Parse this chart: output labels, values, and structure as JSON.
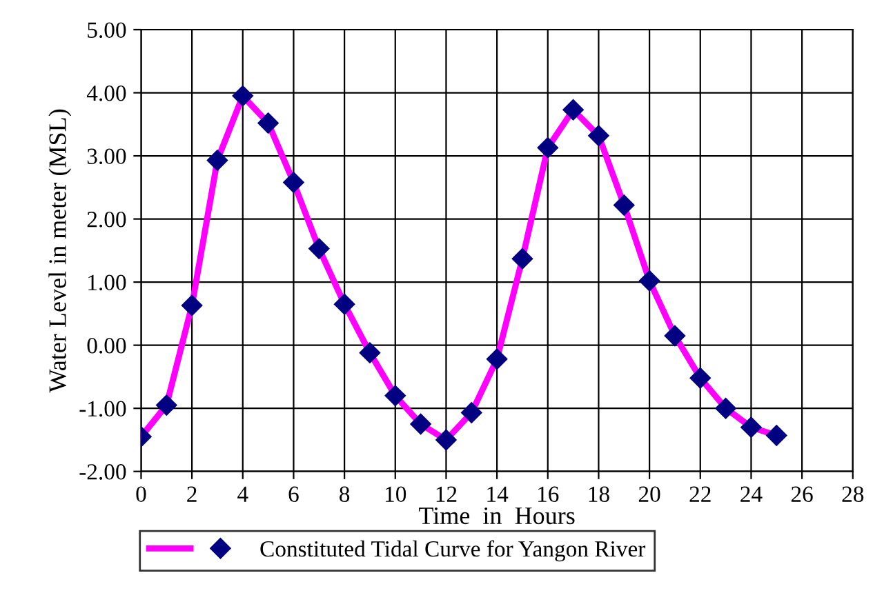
{
  "chart_data": {
    "type": "line",
    "xlabel": "Time  in  Hours",
    "ylabel": "Water Level in meter (MSL)",
    "x": [
      0,
      1,
      2,
      3,
      4,
      5,
      6,
      7,
      8,
      9,
      10,
      11,
      12,
      13,
      14,
      15,
      16,
      17,
      18,
      19,
      20,
      21,
      22,
      23,
      24,
      25
    ],
    "series": [
      {
        "name": "Constituted Tidal Curve for Yangon River",
        "color": "#ff00ff",
        "colors": [
          "#000080",
          "#000080",
          "#000080",
          "#000080",
          "#000080",
          "#000080",
          "#000080",
          "#000080",
          "#000080",
          "#000080",
          "#000080",
          "#000080",
          "#000080",
          "#000080",
          "#000080",
          "#000080",
          "#000080",
          "#000080",
          "#000080",
          "#000080",
          "#000080",
          "#000080",
          "#000080",
          "#000080",
          "#000080",
          "#000080"
        ],
        "values": [
          -1.45,
          -0.95,
          0.63,
          2.93,
          3.95,
          3.52,
          2.58,
          1.53,
          0.65,
          -0.12,
          -0.8,
          -1.25,
          -1.5,
          -1.07,
          -0.22,
          1.37,
          3.13,
          3.73,
          3.32,
          2.22,
          1.02,
          0.15,
          -0.52,
          -1.0,
          -1.3,
          -1.43
        ]
      }
    ],
    "marker": "diamond",
    "line_style": "solid",
    "grid": true,
    "legend": "bottom",
    "xlim": [
      0,
      28
    ],
    "xticks": [
      0,
      2,
      4,
      6,
      8,
      10,
      12,
      14,
      16,
      18,
      20,
      22,
      24,
      26,
      28
    ],
    "ylim": [
      -2,
      5
    ],
    "yticks": [
      {
        "value": -2,
        "label": "-2.00"
      },
      {
        "value": -1,
        "label": "-1.00"
      },
      {
        "value": 0,
        "label": "0.00"
      },
      {
        "value": 1,
        "label": "1.00"
      },
      {
        "value": 2,
        "label": "2.00"
      },
      {
        "value": 3,
        "label": "3.00"
      },
      {
        "value": 4,
        "label": "4.00"
      },
      {
        "value": 5,
        "label": "5.00"
      }
    ]
  }
}
